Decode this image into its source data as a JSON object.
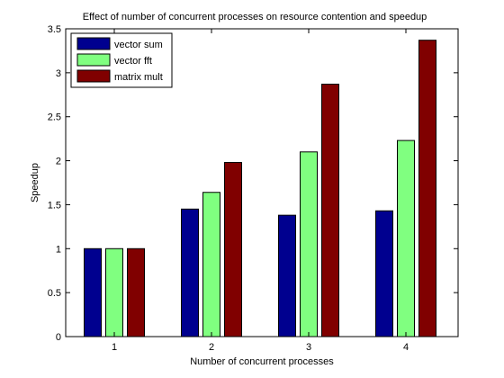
{
  "chart_data": {
    "type": "bar",
    "title": "Effect of number of concurrent processes on resource contention and speedup",
    "xlabel": "Number of concurrent processes",
    "ylabel": "Speedup",
    "categories": [
      "1",
      "2",
      "3",
      "4"
    ],
    "ylim": [
      0,
      3.5
    ],
    "yticks": [
      "0",
      "0.5",
      "1",
      "1.5",
      "2",
      "2.5",
      "3",
      "3.5"
    ],
    "grid": false,
    "legend_position": "top-left",
    "series": [
      {
        "name": "vector sum",
        "color": "#00008f",
        "values": [
          1.0,
          1.45,
          1.38,
          1.43
        ]
      },
      {
        "name": "vector fft",
        "color": "#80ff80",
        "values": [
          1.0,
          1.64,
          2.1,
          2.23
        ]
      },
      {
        "name": "matrix mult",
        "color": "#800000",
        "values": [
          1.0,
          1.98,
          2.87,
          3.37
        ]
      }
    ]
  }
}
